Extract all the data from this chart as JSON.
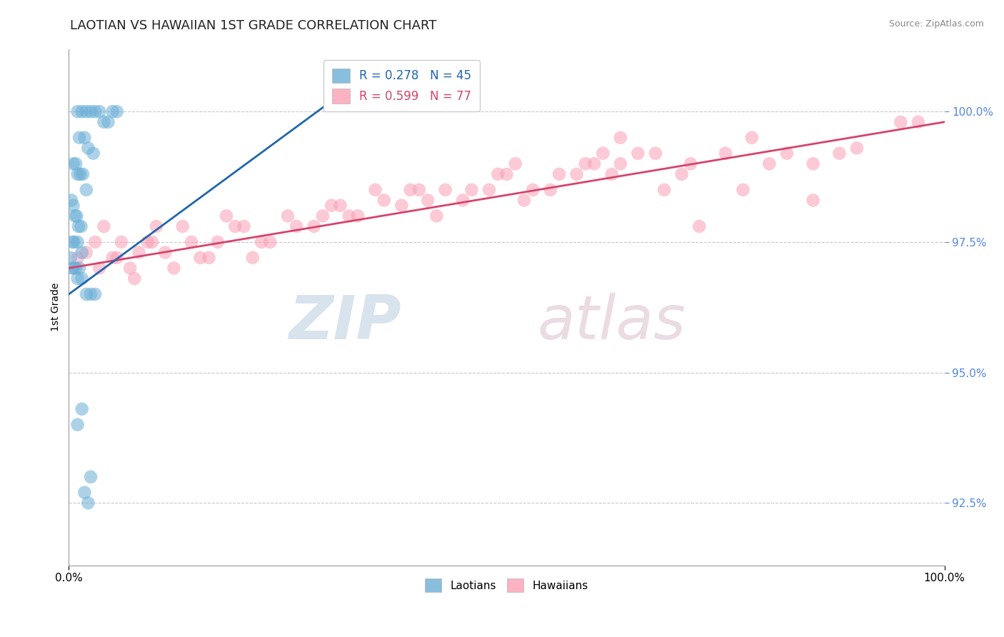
{
  "title": "LAOTIAN VS HAWAIIAN 1ST GRADE CORRELATION CHART",
  "ylabel": "1st Grade",
  "source": "Source: ZipAtlas.com",
  "yticks": [
    92.5,
    95.0,
    97.5,
    100.0
  ],
  "ytick_labels": [
    "92.5%",
    "95.0%",
    "97.5%",
    "100.0%"
  ],
  "xlim": [
    0.0,
    100.0
  ],
  "ylim": [
    91.3,
    101.2
  ],
  "legend_blue_r": "0.278",
  "legend_blue_n": "45",
  "legend_pink_r": "0.599",
  "legend_pink_n": "77",
  "blue_color": "#6baed6",
  "pink_color": "#fa9fb5",
  "blue_line_color": "#2166ac",
  "pink_line_color": "#d6446b",
  "grid_color": "#c8c8c8",
  "blue_x": [
    1.0,
    1.5,
    2.0,
    2.5,
    3.0,
    3.5,
    4.0,
    4.5,
    5.0,
    5.5,
    1.2,
    1.8,
    2.2,
    2.8,
    0.5,
    0.8,
    1.0,
    1.3,
    1.6,
    2.0,
    0.3,
    0.5,
    0.7,
    0.9,
    1.1,
    1.4,
    0.4,
    0.6,
    1.0,
    1.5,
    0.2,
    0.4,
    0.6,
    0.8,
    1.2,
    1.0,
    1.5,
    2.0,
    2.5,
    3.0,
    1.0,
    1.5,
    1.8,
    2.2,
    2.5
  ],
  "blue_y": [
    100.0,
    100.0,
    100.0,
    100.0,
    100.0,
    100.0,
    99.8,
    99.8,
    100.0,
    100.0,
    99.5,
    99.5,
    99.3,
    99.2,
    99.0,
    99.0,
    98.8,
    98.8,
    98.8,
    98.5,
    98.3,
    98.2,
    98.0,
    98.0,
    97.8,
    97.8,
    97.5,
    97.5,
    97.5,
    97.3,
    97.2,
    97.0,
    97.0,
    97.0,
    97.0,
    96.8,
    96.8,
    96.5,
    96.5,
    96.5,
    94.0,
    94.3,
    92.7,
    92.5,
    93.0
  ],
  "pink_x": [
    1.0,
    2.0,
    3.0,
    4.0,
    5.0,
    6.0,
    7.0,
    8.0,
    9.0,
    10.0,
    12.0,
    14.0,
    16.0,
    18.0,
    20.0,
    22.0,
    25.0,
    28.0,
    30.0,
    32.0,
    35.0,
    38.0,
    40.0,
    42.0,
    45.0,
    48.0,
    50.0,
    52.0,
    55.0,
    58.0,
    60.0,
    62.0,
    65.0,
    68.0,
    70.0,
    75.0,
    78.0,
    80.0,
    82.0,
    85.0,
    88.0,
    90.0,
    95.0,
    97.0,
    3.5,
    5.5,
    7.5,
    9.5,
    11.0,
    13.0,
    15.0,
    17.0,
    19.0,
    21.0,
    23.0,
    26.0,
    29.0,
    31.0,
    33.0,
    36.0,
    39.0,
    41.0,
    43.0,
    46.0,
    49.0,
    51.0,
    53.0,
    56.0,
    59.0,
    61.0,
    63.0,
    67.0,
    71.0,
    77.0,
    72.0,
    63.0,
    85.0
  ],
  "pink_y": [
    97.2,
    97.3,
    97.5,
    97.8,
    97.2,
    97.5,
    97.0,
    97.3,
    97.5,
    97.8,
    97.0,
    97.5,
    97.2,
    98.0,
    97.8,
    97.5,
    98.0,
    97.8,
    98.2,
    98.0,
    98.5,
    98.2,
    98.5,
    98.0,
    98.3,
    98.5,
    98.8,
    98.3,
    98.5,
    98.8,
    99.0,
    98.8,
    99.2,
    98.5,
    98.8,
    99.2,
    99.5,
    99.0,
    99.2,
    99.0,
    99.2,
    99.3,
    99.8,
    99.8,
    97.0,
    97.2,
    96.8,
    97.5,
    97.3,
    97.8,
    97.2,
    97.5,
    97.8,
    97.2,
    97.5,
    97.8,
    98.0,
    98.2,
    98.0,
    98.3,
    98.5,
    98.3,
    98.5,
    98.5,
    98.8,
    99.0,
    98.5,
    98.8,
    99.0,
    99.2,
    99.0,
    99.2,
    99.0,
    98.5,
    97.8,
    99.5,
    98.3
  ]
}
